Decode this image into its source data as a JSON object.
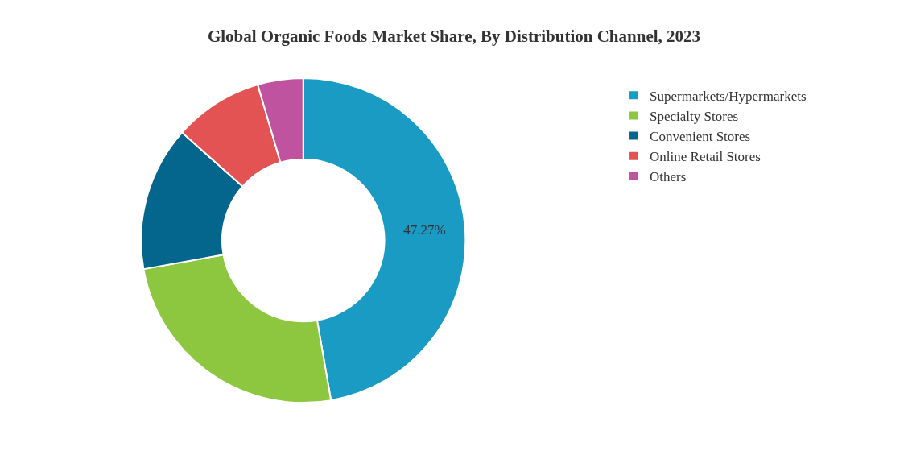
{
  "chart_data": {
    "type": "donut",
    "title": "Global Organic Foods Market Share, By Distribution Channel, 2023",
    "categories": [
      "Supermarkets/Hypermarkets",
      "Specialty Stores",
      "Convenient Stores",
      "Online Retail Stores",
      "Others"
    ],
    "values": [
      47.27,
      24.9,
      14.4,
      8.9,
      4.53
    ],
    "colors": [
      "#1a9bc4",
      "#8dc63f",
      "#05668d",
      "#e45353",
      "#c0539f"
    ],
    "value_labels": [
      "47.27%",
      null,
      null,
      null,
      null
    ],
    "legend": "right"
  }
}
